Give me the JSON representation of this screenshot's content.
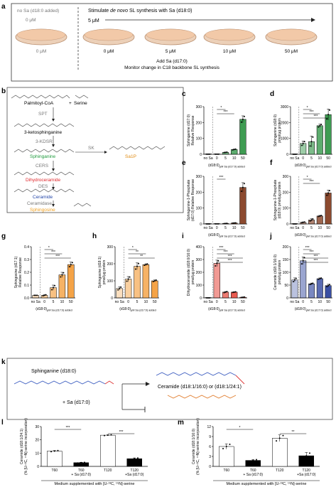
{
  "panels": {
    "a": {
      "letter": "a",
      "no_sa_title": "no Sa (d18:0 added)",
      "no_sa_conc": "0 μM",
      "stimulate_prefix": "Stimulate ",
      "stimulate_italic": "de novo",
      "stimulate_suffix": " SL synthesis with Sa (d18:0)",
      "stimulate_conc": "5 μM",
      "dish_labels": [
        "0 μM",
        "0 μM",
        "5 μM",
        "10 μM",
        "50 μM"
      ],
      "add_line1": "Add Sa (d17:0)",
      "add_line2": "Monitor change in C18 backbone SL synthesis"
    },
    "b": {
      "letter": "b",
      "palmitoyl": "Palmitoyl-CoA",
      "plus": "+",
      "serine": "Serine",
      "spt": "SPT",
      "ketosph": "3-ketosphinganine",
      "kdsr": "3-KDSR",
      "sphinganine": "Sphinganine",
      "sk": "SK",
      "sa1p": "Sa1P",
      "cers": "CERS",
      "dihydro": "Dihydroceramide",
      "des": "DES",
      "ceramide": "Ceramide",
      "ceramidase": "Ceramidase",
      "sphingosine": "Sphingosine"
    },
    "k": {
      "letter": "k",
      "sphinganine": "Sphinganine (d18:0)",
      "plus_sa": "+ Sa (d17:0)",
      "product": "Ceramide (d18:1/16:0) or (d18:1/24:1)"
    }
  },
  "colors": {
    "green": "#3e9c52",
    "brown": "#8c4a2f",
    "orange": "#f4a347",
    "red": "#e33b2e",
    "blue": "#3a4fa3",
    "sphinganine_text": "#1e9a3c",
    "dihydro_text": "#e0272b",
    "ceramide_text": "#2446a8",
    "sphingosine_text": "#f0a020",
    "sa1p_text": "#e08a10",
    "dish_fill": "#f2c9a8"
  },
  "chart_data": [
    {
      "id": "c",
      "type": "bar",
      "ylabel": "Sphinganine (d17:0)\nRelative Response",
      "categories": [
        "no Sa",
        "0",
        "5",
        "10",
        "50"
      ],
      "values": [
        0.5,
        0.5,
        12,
        30,
        220
      ],
      "errors": [
        0,
        0,
        2,
        3,
        22
      ],
      "ylim": [
        0,
        300
      ],
      "yticks": [
        "0",
        "100",
        "200",
        "300"
      ],
      "xlabel_main": "(d18:0)",
      "xlabel_sub": "μM Sa (d17:0) added",
      "significance": [
        "*",
        "***"
      ],
      "color": "green"
    },
    {
      "id": "d",
      "type": "bar",
      "ylabel": "Sphinganine (d18:0)\npmol/μg protein",
      "categories": [
        "no Sa",
        "0",
        "5",
        "10",
        "50"
      ],
      "values": [
        0,
        680,
        800,
        1800,
        2500
      ],
      "errors": [
        0,
        150,
        350,
        100,
        350
      ],
      "ylim": [
        0,
        3000
      ],
      "yticks": [
        "0",
        "1000",
        "2000",
        "3000"
      ],
      "xlabel_main": "(d18:0)",
      "xlabel_sub": "μM Sa (d17:0) added",
      "significance": [
        "*",
        "***",
        "***"
      ],
      "color": "green"
    },
    {
      "id": "e",
      "type": "bar",
      "ylabel": "Sphinganine-1-Phosphate\n(d17:0) Relative Response",
      "categories": [
        "no Sa",
        "0",
        "5",
        "10",
        "50"
      ],
      "values": [
        0,
        0.5,
        3,
        6,
        230
      ],
      "errors": [
        0,
        0,
        1,
        1,
        30
      ],
      "ylim": [
        0,
        300
      ],
      "yticks": [
        "0",
        "100",
        "200",
        "300"
      ],
      "xlabel_main": "(d18:0)",
      "xlabel_sub": "μM Sa (d17:0) added",
      "significance": [
        "***"
      ],
      "color": "brown"
    },
    {
      "id": "f",
      "type": "bar",
      "ylabel": "Sphinganine-1-Phosphate\n(d18:0) pmol/μg protein",
      "categories": [
        "no Sa",
        "0",
        "5",
        "10",
        "50"
      ],
      "values": [
        0,
        10,
        25,
        50,
        195
      ],
      "errors": [
        0,
        3,
        8,
        4,
        18
      ],
      "ylim": [
        0,
        300
      ],
      "yticks": [
        "0",
        "100",
        "200",
        "300"
      ],
      "xlabel_main": "(d18:0)",
      "xlabel_sub": "μM Sa (d17:0) added",
      "significance": [
        "*",
        "***"
      ],
      "color": "brown"
    },
    {
      "id": "g",
      "type": "bar",
      "ylabel": "Sphingosine (d17:1)\nRelative Response",
      "categories": [
        "no Sa",
        "0",
        "5",
        "10",
        "50"
      ],
      "values": [
        0.02,
        0.02,
        0.08,
        0.18,
        0.26
      ],
      "errors": [
        0,
        0.005,
        0.02,
        0.02,
        0.02
      ],
      "ylim": [
        0,
        0.4
      ],
      "yticks": [
        "0.0",
        "0.1",
        "0.2",
        "0.3",
        "0.4"
      ],
      "xlabel_main": "(d18:0)",
      "xlabel_sub": "μM Sa (d17:0) added",
      "significance": [
        "*",
        "***",
        "***"
      ],
      "color": "orange"
    },
    {
      "id": "h",
      "type": "bar",
      "ylabel": "Sphingosine (d18:1)\npmol/μg protein",
      "categories": [
        "no Sa",
        "0",
        "5",
        "10",
        "50"
      ],
      "values": [
        55,
        110,
        185,
        195,
        100
      ],
      "errors": [
        10,
        15,
        20,
        5,
        5
      ],
      "ylim": [
        0,
        300
      ],
      "yticks": [
        "0",
        "100",
        "200",
        "300"
      ],
      "xlabel_main": "(d18:0)",
      "xlabel_sub": "μM Sa (d17:0) added",
      "significance": [
        "*",
        "**",
        "**"
      ],
      "color": "orange"
    },
    {
      "id": "i",
      "type": "bar",
      "ylabel": "Dihydroceramide (d18:0/16:0)\npmol/μg protein",
      "categories": [
        "no Sa",
        "0",
        "5",
        "10",
        "50"
      ],
      "values": [
        0,
        270,
        45,
        45,
        5
      ],
      "errors": [
        0,
        25,
        5,
        3,
        2
      ],
      "ylim": [
        0,
        400
      ],
      "yticks": [
        "0",
        "100",
        "200",
        "300",
        "400"
      ],
      "xlabel_main": "(d18:0)",
      "xlabel_sub": "μM Sa (d17:0) added",
      "significance": [
        "***",
        "***",
        "***",
        "***"
      ],
      "color": "red"
    },
    {
      "id": "j",
      "type": "bar",
      "ylabel": "Ceramide (d18:1/16:0)\npmol/μg protein",
      "categories": [
        "no Sa",
        "0",
        "5",
        "10",
        "50"
      ],
      "values": [
        70,
        145,
        55,
        75,
        48
      ],
      "errors": [
        8,
        15,
        3,
        3,
        5
      ],
      "ylim": [
        0,
        200
      ],
      "yticks": [
        "0",
        "50",
        "100",
        "150",
        "200"
      ],
      "xlabel_main": "(d18:0)",
      "xlabel_sub": "μM Sa (d17:0) added",
      "significance": [
        "***",
        "***",
        "***",
        "***"
      ],
      "color": "blue"
    },
    {
      "id": "l",
      "type": "bar",
      "ylabel": "Ceramide (d18:1/24:1)\n(% [U-¹³C, ¹⁵N]-serine incorporation)",
      "categories": [
        "T60",
        "T60\n+ Sa (d17:0)",
        "T120",
        "T120\n+Sa (d17:0)"
      ],
      "values": [
        11.5,
        2.8,
        23.5,
        5.8
      ],
      "errors": [
        0.5,
        0.3,
        0.3,
        0.6
      ],
      "ylim": [
        0,
        30
      ],
      "yticks": [
        "0",
        "10",
        "20",
        "30"
      ],
      "xlabel_main": "Medium supplemented with [U-¹³C, ¹⁵N]-serine",
      "significance": [
        "***",
        "***"
      ],
      "fill": [
        "white",
        "black",
        "white",
        "black"
      ]
    },
    {
      "id": "m",
      "type": "bar",
      "ylabel": "Ceramide (d18:1/16:0)\n(% [U-¹³C, ¹⁵N]-serine incorporation)",
      "categories": [
        "T60",
        "T60\n+ Sa (d17:0)",
        "T120",
        "T120\n+Sa (d17:0)"
      ],
      "values": [
        6,
        1.8,
        8.5,
        3.2
      ],
      "errors": [
        0.8,
        0.3,
        1,
        1
      ],
      "ylim": [
        0,
        12
      ],
      "yticks": [
        "0",
        "3",
        "6",
        "9",
        "12"
      ],
      "xlabel_main": "Medium supplemented with [U-¹³C, ¹⁵N]-serine",
      "significance": [
        "*",
        "**"
      ],
      "fill": [
        "white",
        "black",
        "white",
        "black"
      ]
    }
  ]
}
